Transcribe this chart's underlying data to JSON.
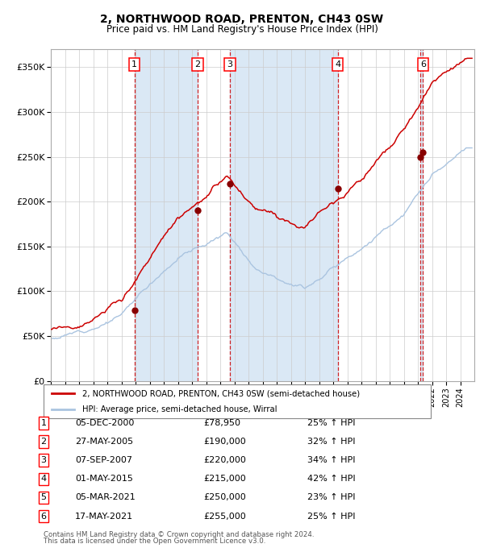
{
  "title1": "2, NORTHWOOD ROAD, PRENTON, CH43 0SW",
  "title2": "Price paid vs. HM Land Registry's House Price Index (HPI)",
  "legend_line1": "2, NORTHWOOD ROAD, PRENTON, CH43 0SW (semi-detached house)",
  "legend_line2": "HPI: Average price, semi-detached house, Wirral",
  "hpi_color": "#aac4e0",
  "sale_color": "#cc0000",
  "sale_dot_color": "#880000",
  "vline_color": "#cc0000",
  "shade_color": "#dae8f5",
  "ylim": [
    0,
    370000
  ],
  "yticks": [
    0,
    50000,
    100000,
    150000,
    200000,
    250000,
    300000,
    350000
  ],
  "ytick_labels": [
    "£0",
    "£50K",
    "£100K",
    "£150K",
    "£200K",
    "£250K",
    "£300K",
    "£350K"
  ],
  "sales": [
    {
      "num": 1,
      "date_num": 2000.92,
      "price": 78950
    },
    {
      "num": 2,
      "date_num": 2005.4,
      "price": 190000
    },
    {
      "num": 3,
      "date_num": 2007.68,
      "price": 220000
    },
    {
      "num": 4,
      "date_num": 2015.33,
      "price": 215000
    },
    {
      "num": 5,
      "date_num": 2021.17,
      "price": 250000
    },
    {
      "num": 6,
      "date_num": 2021.37,
      "price": 255000
    }
  ],
  "shown_labels": [
    1,
    2,
    3,
    4,
    6
  ],
  "table_rows": [
    [
      "1",
      "05-DEC-2000",
      "£78,950",
      "25% ↑ HPI"
    ],
    [
      "2",
      "27-MAY-2005",
      "£190,000",
      "32% ↑ HPI"
    ],
    [
      "3",
      "07-SEP-2007",
      "£220,000",
      "34% ↑ HPI"
    ],
    [
      "4",
      "01-MAY-2015",
      "£215,000",
      "42% ↑ HPI"
    ],
    [
      "5",
      "05-MAR-2021",
      "£250,000",
      "23% ↑ HPI"
    ],
    [
      "6",
      "17-MAY-2021",
      "£255,000",
      "25% ↑ HPI"
    ]
  ],
  "footnote1": "Contains HM Land Registry data © Crown copyright and database right 2024.",
  "footnote2": "This data is licensed under the Open Government Licence v3.0.",
  "xmin": 1995.0,
  "xmax": 2025.0
}
